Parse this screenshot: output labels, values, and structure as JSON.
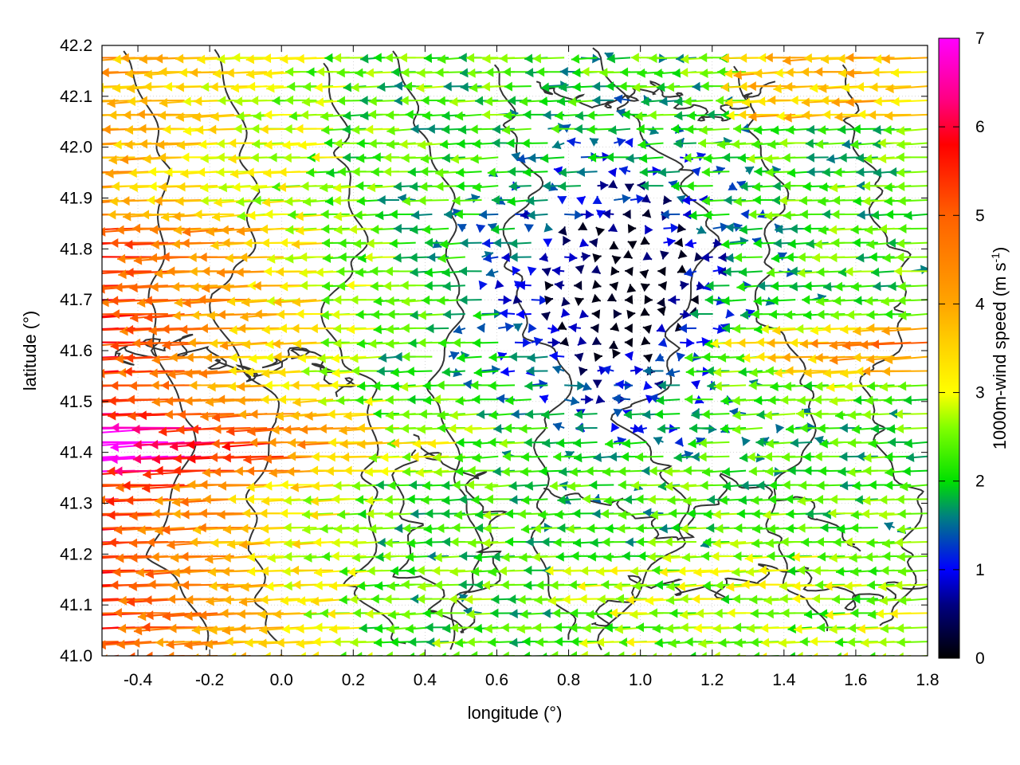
{
  "chart_data": {
    "type": "vector-field",
    "xlabel": "longitude (°)",
    "ylabel": "latitude (°)",
    "colorbar_label": "1000m-wind speed (m s",
    "colorbar_label_sup": "-1",
    "colorbar_label_end": ")",
    "xlim": [
      -0.5,
      1.8
    ],
    "ylim": [
      41.0,
      42.2
    ],
    "x_ticks": [
      {
        "value": -0.4,
        "label": "-0.4"
      },
      {
        "value": -0.2,
        "label": "-0.2"
      },
      {
        "value": 0.0,
        "label": "0.0"
      },
      {
        "value": 0.2,
        "label": "0.2"
      },
      {
        "value": 0.4,
        "label": "0.4"
      },
      {
        "value": 0.6,
        "label": "0.6"
      },
      {
        "value": 0.8,
        "label": "0.8"
      },
      {
        "value": 1.0,
        "label": "1.0"
      },
      {
        "value": 1.2,
        "label": "1.2"
      },
      {
        "value": 1.4,
        "label": "1.4"
      },
      {
        "value": 1.6,
        "label": "1.6"
      },
      {
        "value": 1.8,
        "label": "1.8"
      }
    ],
    "y_ticks": [
      {
        "value": 41.0,
        "label": "41.0"
      },
      {
        "value": 41.1,
        "label": "41.1"
      },
      {
        "value": 41.2,
        "label": "41.2"
      },
      {
        "value": 41.3,
        "label": "41.3"
      },
      {
        "value": 41.4,
        "label": "41.4"
      },
      {
        "value": 41.5,
        "label": "41.5"
      },
      {
        "value": 41.6,
        "label": "41.6"
      },
      {
        "value": 41.7,
        "label": "41.7"
      },
      {
        "value": 41.8,
        "label": "41.8"
      },
      {
        "value": 41.9,
        "label": "41.9"
      },
      {
        "value": 42.0,
        "label": "42.0"
      },
      {
        "value": 42.1,
        "label": "42.1"
      },
      {
        "value": 42.2,
        "label": "42.2"
      }
    ],
    "colorbar": {
      "range": [
        0,
        7
      ],
      "ticks": [
        {
          "value": 0,
          "label": "0"
        },
        {
          "value": 1,
          "label": "1"
        },
        {
          "value": 2,
          "label": "2"
        },
        {
          "value": 3,
          "label": "3"
        },
        {
          "value": 4,
          "label": "4"
        },
        {
          "value": 5,
          "label": "5"
        },
        {
          "value": 6,
          "label": "6"
        },
        {
          "value": 7,
          "label": "7"
        }
      ],
      "palette": [
        {
          "value": 0.0,
          "color": "#000000"
        },
        {
          "value": 0.6,
          "color": "#000080"
        },
        {
          "value": 1.0,
          "color": "#0000ff"
        },
        {
          "value": 1.6,
          "color": "#008080"
        },
        {
          "value": 2.0,
          "color": "#00e000"
        },
        {
          "value": 2.6,
          "color": "#80ff00"
        },
        {
          "value": 3.0,
          "color": "#ffff00"
        },
        {
          "value": 3.6,
          "color": "#ffcc00"
        },
        {
          "value": 4.0,
          "color": "#ffa500"
        },
        {
          "value": 5.0,
          "color": "#ff6000"
        },
        {
          "value": 5.8,
          "color": "#ff0000"
        },
        {
          "value": 6.3,
          "color": "#ff0080"
        },
        {
          "value": 7.0,
          "color": "#ff00ff"
        }
      ]
    },
    "contour_color": "#333333",
    "grid": true,
    "wind_field_grid": {
      "lon_step": 0.046,
      "lat_step": 0.028
    }
  }
}
